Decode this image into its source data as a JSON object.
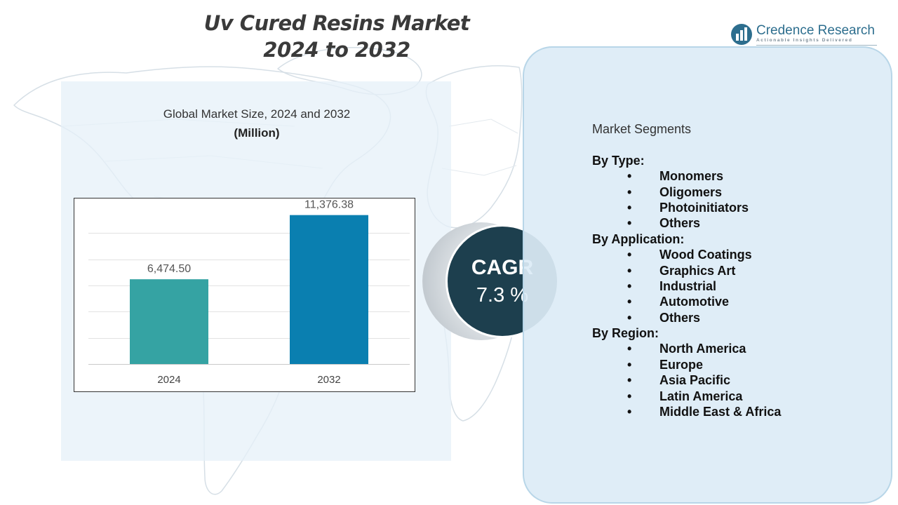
{
  "title": {
    "line1": "Uv Cured Resins Market",
    "line2": "2024 to 2032"
  },
  "brand": {
    "name": "Credence Research",
    "tagline": "Actionable Insights Delivered"
  },
  "chart": {
    "heading": "Global Market Size, 2024 and 2032",
    "unit": "(Million)"
  },
  "chart_data": {
    "type": "bar",
    "categories": [
      "2024",
      "2032"
    ],
    "values": [
      6474.5,
      11376.38
    ],
    "value_labels": [
      "6,474.50",
      "11,376.38"
    ],
    "colors": [
      "#35a3a3",
      "#0a7fb0"
    ],
    "title": "Global Market Size, 2024 and 2032",
    "ylabel": "",
    "xlabel": "",
    "ylim": [
      0,
      12000
    ],
    "grid": true,
    "legend": "none"
  },
  "cagr": {
    "label": "CAGR",
    "value": "7.3 %"
  },
  "segments": {
    "title": "Market Segments",
    "bullet": "•",
    "groups": [
      {
        "label": "By Type:",
        "items": [
          "Monomers",
          "Oligomers",
          "Photoinitiators",
          "Others"
        ]
      },
      {
        "label": "By Application:",
        "items": [
          "Wood Coatings",
          "Graphics Art",
          "Industrial",
          "Automotive",
          "Others"
        ]
      },
      {
        "label": "By Region:",
        "items": [
          "North America",
          "Europe",
          "Asia Pacific",
          "Latin America",
          "Middle East & Africa"
        ]
      }
    ]
  },
  "colors": {
    "title": "#3a3a3a",
    "cagr_circle": "#1d3f4e",
    "panel": "#dcecf6",
    "brand": "#2d6e8e"
  }
}
